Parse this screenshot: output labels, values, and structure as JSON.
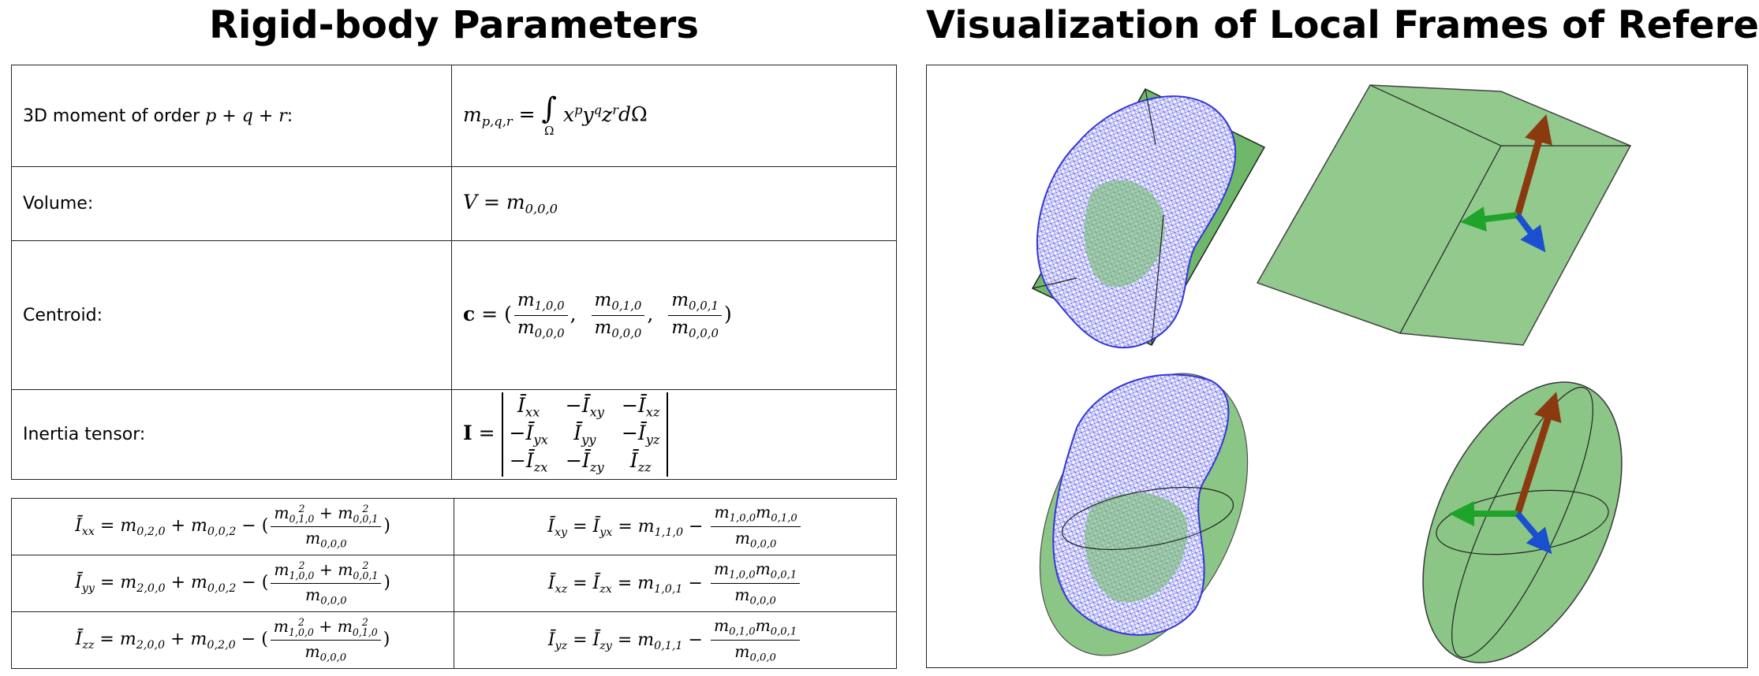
{
  "left_title": "Rigid-body Parameters",
  "right_title": "Visualization of Local Frames of Reference",
  "definitions": [
    {
      "label": [
        "3D moment of order ",
        {
          "v": "p"
        },
        " + ",
        {
          "v": "q"
        },
        " + ",
        {
          "v": "r"
        },
        ":"
      ],
      "formula": [
        {
          "v": "m",
          "sub": "p,q,r"
        },
        " = ",
        {
          "v": "∫",
          "under": "Ω"
        },
        " ",
        {
          "v": "x",
          "sup": "p"
        },
        {
          "v": "y",
          "sup": "q"
        },
        {
          "v": "z",
          "sup": "r"
        },
        {
          "v": "d"
        },
        "Ω"
      ]
    },
    {
      "label": [
        "Volume:"
      ],
      "formula": [
        {
          "v": "V"
        },
        " = ",
        {
          "v": "m",
          "sub": "0,0,0"
        }
      ]
    },
    {
      "label": [
        "Centroid:"
      ],
      "formula": [
        {
          "v": "c",
          "bold": true
        },
        " = (",
        {
          "num": [
            {
              "v": "m",
              "sub": "1,0,0"
            }
          ],
          "den": [
            {
              "v": "m",
              "sub": "0,0,0"
            }
          ]
        },
        ",  ",
        {
          "num": [
            {
              "v": "m",
              "sub": "0,1,0"
            }
          ],
          "den": [
            {
              "v": "m",
              "sub": "0,0,0"
            }
          ]
        },
        ",  ",
        {
          "num": [
            {
              "v": "m",
              "sub": "0,0,1"
            }
          ],
          "den": [
            {
              "v": "m",
              "sub": "0,0,0"
            }
          ]
        },
        ")"
      ]
    },
    {
      "label": [
        "Inertia tensor:"
      ],
      "formula": [
        {
          "v": "I",
          "bold": true
        },
        " = ",
        {
          "rows": [
            [
              [
                {
                  "v": "Ī",
                  "sub": "xx"
                }
              ],
              [
                "−",
                {
                  "v": "Ī",
                  "sub": "xy"
                }
              ],
              [
                "−",
                {
                  "v": "Ī",
                  "sub": "xz"
                }
              ]
            ],
            [
              [
                "−",
                {
                  "v": "Ī",
                  "sub": "yx"
                }
              ],
              [
                {
                  "v": "Ī",
                  "sub": "yy"
                }
              ],
              [
                "−",
                {
                  "v": "Ī",
                  "sub": "yz"
                }
              ]
            ],
            [
              [
                "−",
                {
                  "v": "Ī",
                  "sub": "zx"
                }
              ],
              [
                "−",
                {
                  "v": "Ī",
                  "sub": "zy"
                }
              ],
              [
                {
                  "v": "Ī",
                  "sub": "zz"
                }
              ]
            ]
          ]
        }
      ]
    }
  ],
  "inertia_components": [
    [
      [
        {
          "v": "Ī",
          "sub": "xx"
        },
        " = ",
        {
          "v": "m",
          "sub": "0,2,0"
        },
        " + ",
        {
          "v": "m",
          "sub": "0,0,2"
        },
        " − (",
        {
          "num": [
            {
              "v": "m",
              "sub": "0,1,0",
              "sup": "2"
            },
            " + ",
            {
              "v": "m",
              "sub": "0,0,1",
              "sup": "2"
            }
          ],
          "den": [
            {
              "v": "m",
              "sub": "0,0,0"
            }
          ]
        },
        ")"
      ],
      [
        {
          "v": "Ī",
          "sub": "xy"
        },
        " = ",
        {
          "v": "Ī",
          "sub": "yx"
        },
        " = ",
        {
          "v": "m",
          "sub": "1,1,0"
        },
        " − ",
        {
          "num": [
            {
              "v": "m",
              "sub": "1,0,0"
            },
            {
              "v": "m",
              "sub": "0,1,0"
            }
          ],
          "den": [
            {
              "v": "m",
              "sub": "0,0,0"
            }
          ]
        }
      ]
    ],
    [
      [
        {
          "v": "Ī",
          "sub": "yy"
        },
        " = ",
        {
          "v": "m",
          "sub": "2,0,0"
        },
        " + ",
        {
          "v": "m",
          "sub": "0,0,2"
        },
        " − (",
        {
          "num": [
            {
              "v": "m",
              "sub": "1,0,0",
              "sup": "2"
            },
            " + ",
            {
              "v": "m",
              "sub": "0,0,1",
              "sup": "2"
            }
          ],
          "den": [
            {
              "v": "m",
              "sub": "0,0,0"
            }
          ]
        },
        ")"
      ],
      [
        {
          "v": "Ī",
          "sub": "xz"
        },
        " = ",
        {
          "v": "Ī",
          "sub": "zx"
        },
        " = ",
        {
          "v": "m",
          "sub": "1,0,1"
        },
        " − ",
        {
          "num": [
            {
              "v": "m",
              "sub": "1,0,0"
            },
            {
              "v": "m",
              "sub": "0,0,1"
            }
          ],
          "den": [
            {
              "v": "m",
              "sub": "0,0,0"
            }
          ]
        }
      ]
    ],
    [
      [
        {
          "v": "Ī",
          "sub": "zz"
        },
        " = ",
        {
          "v": "m",
          "sub": "2,0,0"
        },
        " + ",
        {
          "v": "m",
          "sub": "0,2,0"
        },
        " − (",
        {
          "num": [
            {
              "v": "m",
              "sub": "1,0,0",
              "sup": "2"
            },
            " + ",
            {
              "v": "m",
              "sub": "0,1,0",
              "sup": "2"
            }
          ],
          "den": [
            {
              "v": "m",
              "sub": "0,0,0"
            }
          ]
        },
        ")"
      ],
      [
        {
          "v": "Ī",
          "sub": "yz"
        },
        " = ",
        {
          "v": "Ī",
          "sub": "zy"
        },
        " = ",
        {
          "v": "m",
          "sub": "0,1,1"
        },
        " − ",
        {
          "num": [
            {
              "v": "m",
              "sub": "0,1,0"
            },
            {
              "v": "m",
              "sub": "0,0,1"
            }
          ],
          "den": [
            {
              "v": "m",
              "sub": "0,0,0"
            }
          ]
        }
      ]
    ]
  ]
}
